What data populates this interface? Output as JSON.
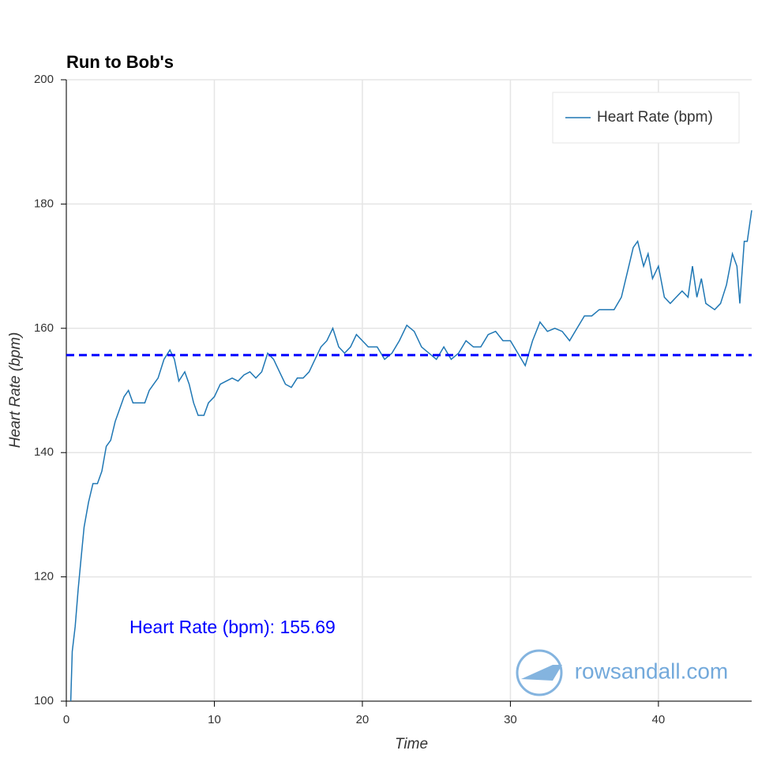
{
  "chart_data": {
    "type": "line",
    "title": "Run to Bob's",
    "x_label": "Time",
    "y_label": "Heart Rate (bpm)",
    "x": [
      0.3,
      0.4,
      0.6,
      0.8,
      1.0,
      1.2,
      1.5,
      1.8,
      2.1,
      2.4,
      2.7,
      3.0,
      3.3,
      3.6,
      3.9,
      4.2,
      4.5,
      4.9,
      5.3,
      5.6,
      5.9,
      6.2,
      6.6,
      7.0,
      7.3,
      7.6,
      8.0,
      8.3,
      8.6,
      8.9,
      9.3,
      9.6,
      10.0,
      10.4,
      10.8,
      11.2,
      11.6,
      12.0,
      12.4,
      12.8,
      13.2,
      13.6,
      14.0,
      14.4,
      14.8,
      15.2,
      15.6,
      16.0,
      16.4,
      16.8,
      17.2,
      17.6,
      18.0,
      18.4,
      18.8,
      19.2,
      19.6,
      20.0,
      20.4,
      21.0,
      21.5,
      22.0,
      22.5,
      23.0,
      23.5,
      24.0,
      24.5,
      25.0,
      25.5,
      26.0,
      26.5,
      27.0,
      27.5,
      28.0,
      28.5,
      29.0,
      29.5,
      30.0,
      30.5,
      31.0,
      31.5,
      32.0,
      32.5,
      33.0,
      33.5,
      34.0,
      34.5,
      35.0,
      35.5,
      36.0,
      37.0,
      37.5,
      38.0,
      38.3,
      38.6,
      39.0,
      39.3,
      39.6,
      40.0,
      40.4,
      40.8,
      41.2,
      41.6,
      42.0,
      42.3,
      42.6,
      42.9,
      43.2,
      43.8,
      44.2,
      44.6,
      45.0,
      45.3,
      45.5,
      45.8,
      46.0,
      46.3
    ],
    "series": [
      {
        "name": "Heart Rate (bpm)",
        "color": "#1f77b4",
        "values": [
          100,
          108,
          112,
          118,
          123,
          128,
          132,
          135,
          135,
          137,
          141,
          142,
          145,
          147,
          149,
          150,
          148,
          148,
          148,
          150,
          151,
          152,
          155,
          156.5,
          155,
          151.5,
          153,
          151,
          148,
          146,
          146,
          148,
          149,
          151,
          151.5,
          152,
          151.5,
          152.5,
          153,
          152,
          153,
          156,
          155,
          153,
          151,
          150.5,
          152,
          152,
          153,
          155,
          157,
          158,
          160,
          157,
          156,
          157,
          159,
          158,
          157,
          157,
          155,
          156,
          158,
          160.5,
          159.5,
          157,
          156,
          155,
          157,
          155,
          156,
          158,
          157,
          157,
          159,
          159.5,
          158,
          158,
          156,
          154,
          158,
          161,
          159.5,
          160,
          159.5,
          158,
          160,
          162,
          162,
          163,
          163,
          165,
          170,
          173,
          174,
          170,
          172,
          168,
          170,
          165,
          164,
          165,
          166,
          165,
          170,
          165,
          168,
          164,
          163,
          164,
          167,
          172,
          170,
          164,
          174,
          174,
          179
        ]
      }
    ],
    "hline": {
      "value": 155.69,
      "color": "#0000ff",
      "label": "Heart Rate (bpm): 155.69"
    },
    "xlim": [
      0,
      46.3
    ],
    "ylim": [
      100,
      200
    ],
    "xticks": [
      0,
      10,
      20,
      30,
      40
    ],
    "yticks": [
      100,
      120,
      140,
      160,
      180,
      200
    ],
    "grid": true,
    "legend": "top-right",
    "watermark": "rowsandall.com"
  }
}
